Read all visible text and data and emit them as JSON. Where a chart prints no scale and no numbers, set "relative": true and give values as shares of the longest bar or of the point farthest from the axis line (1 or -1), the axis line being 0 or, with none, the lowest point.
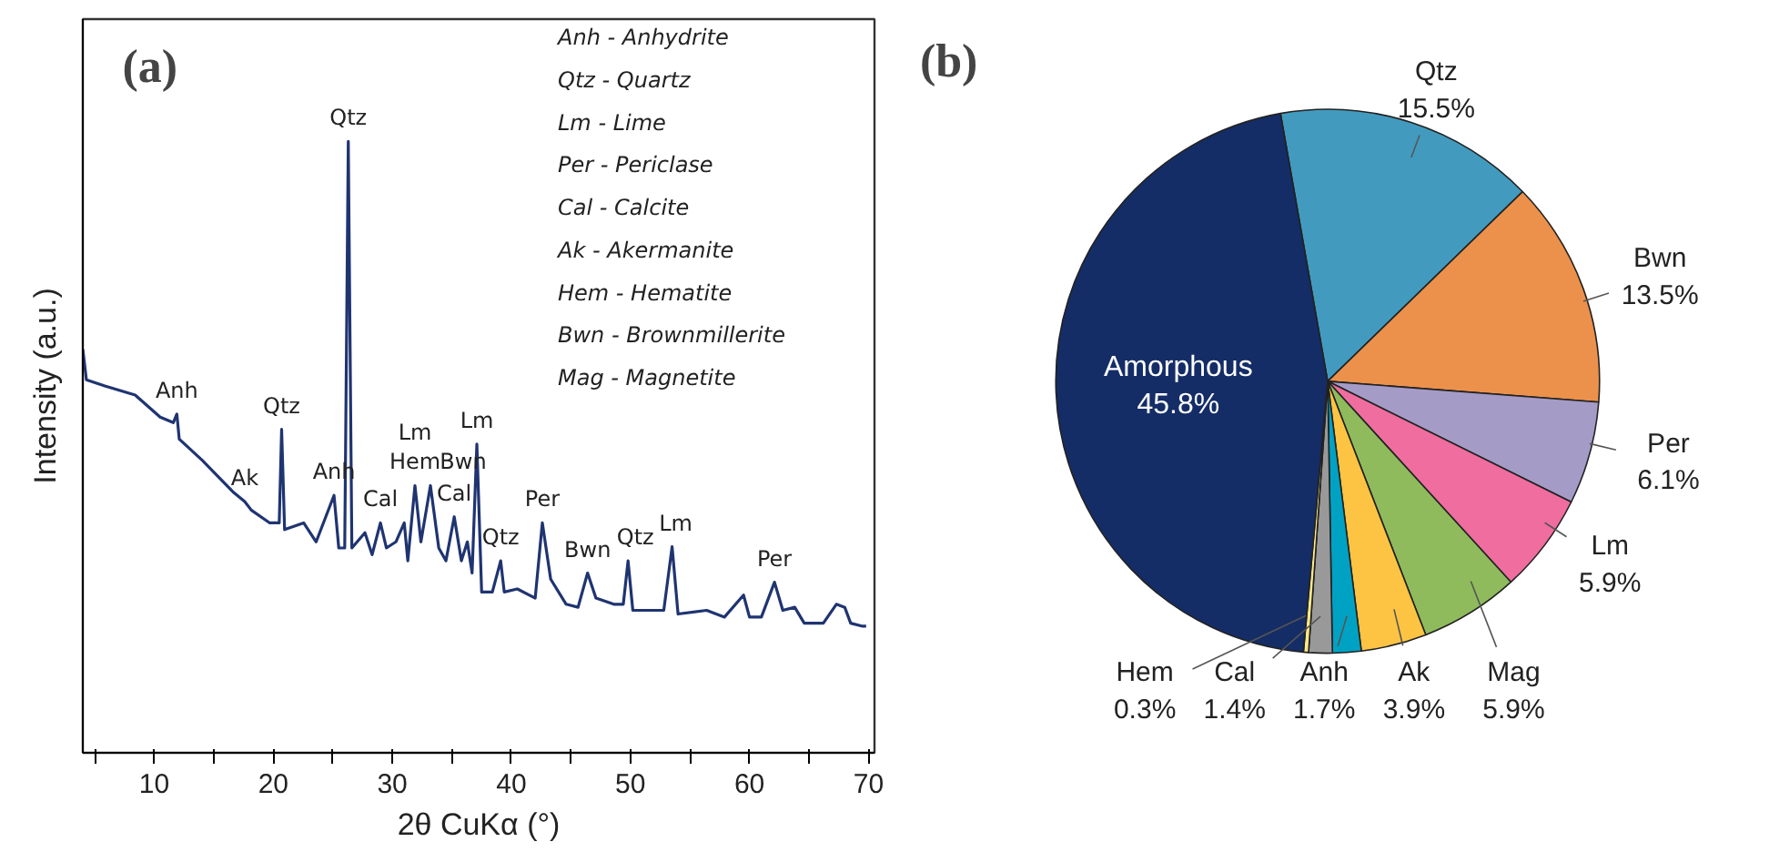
{
  "chart_data": [
    {
      "type": "line",
      "title": "(a)",
      "xlabel": "2θ CuKα (°)",
      "ylabel": "Intensity (a.u.)",
      "relative": true,
      "tick_labels": "x",
      "xlim": [
        4,
        70.5
      ],
      "xticks": [
        {
          "value": 5,
          "label": null
        },
        10,
        {
          "value": 15,
          "label": null
        },
        20,
        {
          "value": 25,
          "label": null
        },
        30,
        {
          "value": 35,
          "label": null
        },
        40,
        {
          "value": 45,
          "label": null
        },
        50,
        {
          "value": 55,
          "label": null
        },
        60,
        {
          "value": 65,
          "label": null
        },
        70
      ],
      "x": [
        4.0,
        4.3,
        5.85,
        8.4,
        10.5,
        11.6,
        11.9,
        12.1,
        14.05,
        16.6,
        17.6,
        18.15,
        19.7,
        20.5,
        20.7,
        20.95,
        22.55,
        23.6,
        25.1,
        25.5,
        26.0,
        26.3,
        26.6,
        27.7,
        28.3,
        29.0,
        29.5,
        30.3,
        31.0,
        31.3,
        31.9,
        32.4,
        33.2,
        33.9,
        34.5,
        35.2,
        35.8,
        36.3,
        36.7,
        37.1,
        37.5,
        38.4,
        39.1,
        39.4,
        40.5,
        42.0,
        42.6,
        43.3,
        44.6,
        45.6,
        46.4,
        47.1,
        48.6,
        49.4,
        49.8,
        50.2,
        52.8,
        53.5,
        54.0,
        56.4,
        57.9,
        59.5,
        60.0,
        61.0,
        62.1,
        62.8,
        63.8,
        64.6,
        66.2,
        67.3,
        68.0,
        68.5,
        69.5,
        69.8
      ],
      "series": [
        {
          "color": "#1f3471",
          "values": [
            0.66,
            0.61,
            0.6,
            0.585,
            0.549,
            0.54,
            0.554,
            0.513,
            0.478,
            0.427,
            0.411,
            0.397,
            0.376,
            0.376,
            0.529,
            0.365,
            0.376,
            0.345,
            0.421,
            0.335,
            0.335,
            1.0,
            0.335,
            0.36,
            0.324,
            0.376,
            0.335,
            0.345,
            0.376,
            0.314,
            0.437,
            0.345,
            0.437,
            0.335,
            0.314,
            0.386,
            0.314,
            0.345,
            0.294,
            0.505,
            0.263,
            0.263,
            0.314,
            0.263,
            0.268,
            0.253,
            0.376,
            0.284,
            0.243,
            0.238,
            0.294,
            0.253,
            0.243,
            0.243,
            0.314,
            0.233,
            0.233,
            0.337,
            0.227,
            0.233,
            0.222,
            0.258,
            0.222,
            0.222,
            0.279,
            0.233,
            0.238,
            0.212,
            0.212,
            0.243,
            0.238,
            0.212,
            0.207,
            0.207
          ]
        }
      ],
      "annotations": [
        {
          "text": "Anh",
          "x": 11.9,
          "y": 0.554
        },
        {
          "text": "Ak",
          "x": 17.6,
          "y": 0.411
        },
        {
          "text": "Qtz",
          "x": 20.7,
          "y": 0.529
        },
        {
          "text": "Anh",
          "x": 25.1,
          "y": 0.421
        },
        {
          "text": "Qtz",
          "x": 26.3,
          "y": 1.0
        },
        {
          "text": "Cal",
          "x": 29.0,
          "y": 0.376
        },
        {
          "text": "Hem",
          "x": 31.9,
          "y": 0.437
        },
        {
          "text": "Lm",
          "x": 31.9,
          "y": 0.437
        },
        {
          "text": "Bwn",
          "x": 33.2,
          "y": 0.437
        },
        {
          "text": "Cal",
          "x": 35.2,
          "y": 0.386
        },
        {
          "text": "Lm",
          "x": 37.1,
          "y": 0.505
        },
        {
          "text": "Qtz",
          "x": 39.1,
          "y": 0.314
        },
        {
          "text": "Per",
          "x": 42.6,
          "y": 0.376
        },
        {
          "text": "Bwn",
          "x": 46.4,
          "y": 0.294
        },
        {
          "text": "Qtz",
          "x": 49.8,
          "y": 0.314
        },
        {
          "text": "Lm",
          "x": 53.5,
          "y": 0.337
        },
        {
          "text": "Per",
          "x": 62.1,
          "y": 0.279
        },
        "Anh - Anhydrite",
        "Qtz - Quartz",
        "Lm - Lime",
        "Per - Periclase",
        "Cal - Calcite",
        "Ak - Akermanite",
        "Hem - Hematite",
        "Bwn - Brownmillerite",
        "Mag - Magnetite"
      ]
    },
    {
      "type": "pie",
      "title": "(b)",
      "categories": [
        "Qtz",
        "Bwn",
        "Per",
        "Lm",
        "Mag",
        "Ak",
        "Anh",
        "Cal",
        "Hem",
        "Amorphous"
      ],
      "values": [
        15.5,
        13.5,
        6.1,
        5.9,
        5.9,
        3.9,
        1.7,
        1.4,
        0.3,
        45.8
      ],
      "value_labels": [
        "15.5%",
        "13.5%",
        "6.1%",
        "5.9%",
        "5.9%",
        "3.9%",
        "1.7%",
        "1.4%",
        "0.3%",
        "45.8%"
      ],
      "colors": [
        "#429bbf",
        "#ec914b",
        "#a49bc6",
        "#ef6d9f",
        "#8fbb5d",
        "#fdc443",
        "#00a2c4",
        "#999999",
        "#fde98a",
        "#142d66"
      ]
    }
  ]
}
